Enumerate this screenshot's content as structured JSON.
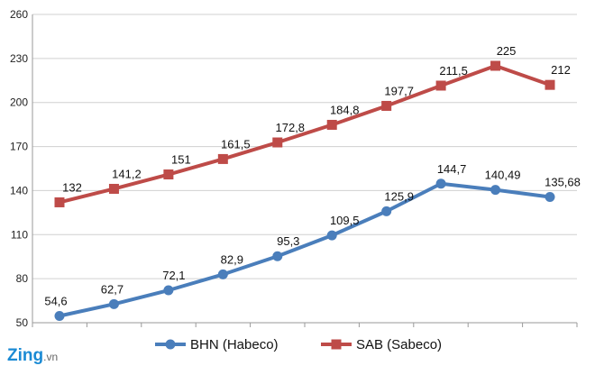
{
  "chart_data": {
    "type": "line",
    "x": [
      "",
      "",
      "",
      "",
      "",
      "",
      "",
      "",
      "",
      ""
    ],
    "ylim": [
      50,
      260
    ],
    "yticks": [
      50,
      80,
      110,
      140,
      170,
      200,
      230,
      260
    ],
    "grid": true,
    "legend_position": "bottom",
    "series": [
      {
        "name": "BHN (Habeco)",
        "color": "#4a7ebb",
        "marker": "circle",
        "values": [
          54.6,
          62.7,
          72.1,
          82.9,
          95.3,
          109.5,
          125.9,
          144.7,
          140.49,
          135.68
        ],
        "labels": [
          "54,6",
          "62,7",
          "72,1",
          "82,9",
          "95,3",
          "109,5",
          "125,9",
          "144,7",
          "140,49",
          "135,68"
        ]
      },
      {
        "name": "SAB (Sabeco)",
        "color": "#be4b48",
        "marker": "square",
        "values": [
          132,
          141.2,
          151,
          161.5,
          172.8,
          184.8,
          197.7,
          211.5,
          225,
          212
        ],
        "labels": [
          "132",
          "141,2",
          "151",
          "161,5",
          "172,8",
          "184,8",
          "197,7",
          "211,5",
          "225",
          "212"
        ]
      }
    ]
  },
  "watermark": {
    "brand": "Zing",
    "suffix": ".vn"
  }
}
